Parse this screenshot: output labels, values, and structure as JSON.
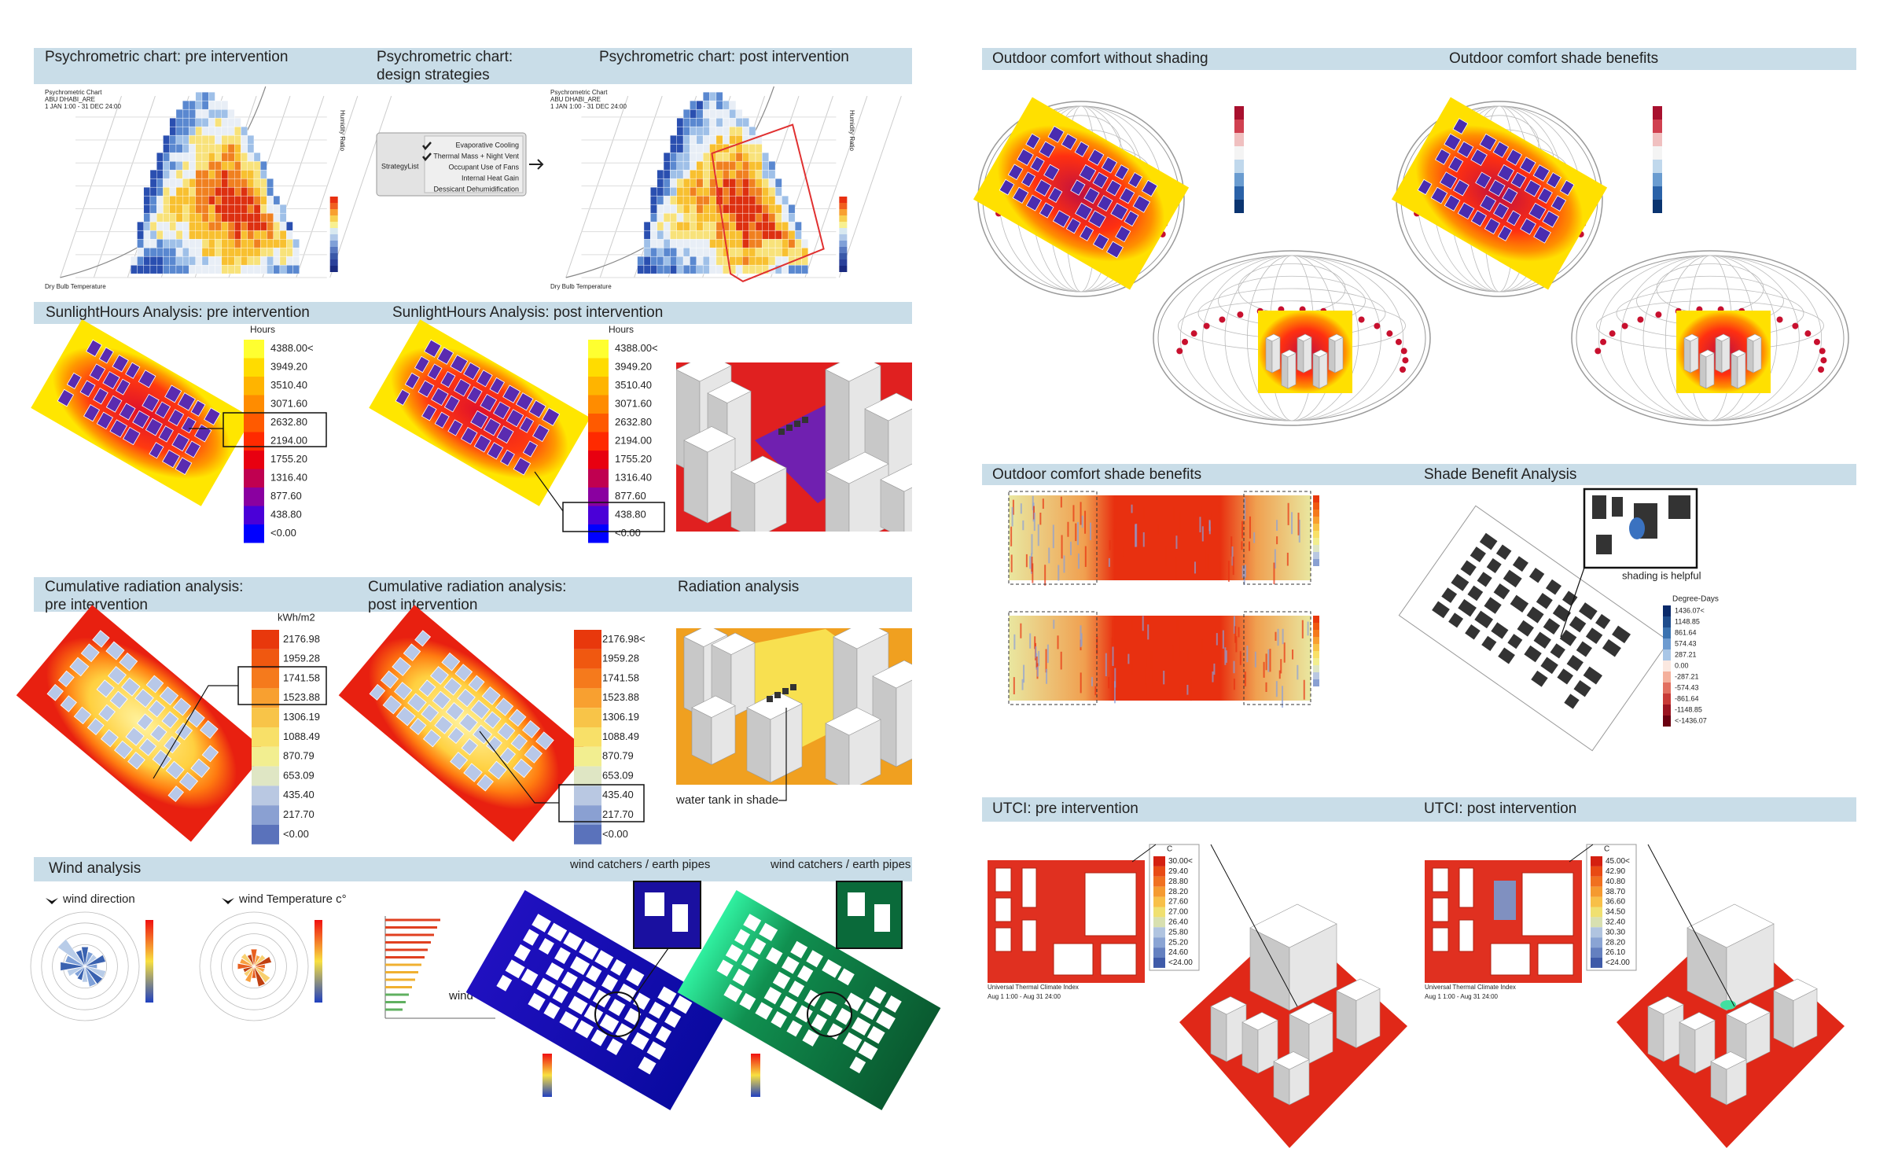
{
  "psychrometric": {
    "pre_title": "Psychrometric chart: pre intervention",
    "design_title": [
      "Psychrometric chart:",
      "design strategies"
    ],
    "post_title": "Psychrometric chart: post intervention",
    "chart_caption": [
      "Psychrometric Chart",
      "ABU DHABI_ARE",
      "1 JAN 1:00 - 31 DEC 24:00"
    ],
    "x_label": "Dry Bulb Temperature",
    "y_label": "Humidity Ratio",
    "strategy_input": "StrategyList",
    "strategies": [
      "Evaporative Cooling",
      "Thermal Mass + Night Vent",
      "Occupant Use of Fans",
      "Internal Heat Gain",
      "Dessicant Dehumidification"
    ]
  },
  "sunlight": {
    "pre_title": "SunlightHours Analysis: pre intervention",
    "post_title": "SunlightHours Analysis: post intervention",
    "legend_title": "Hours",
    "pre_legend": [
      "4388.00<",
      "3949.20",
      "3510.40",
      "3071.60",
      "2632.80",
      "2194.00",
      "1755.20",
      "1316.40",
      "877.60",
      "438.80",
      "<0.00"
    ],
    "post_legend": [
      "4388.00<",
      "3949.20",
      "3510.40",
      "3071.60",
      "2632.80",
      "2194.00",
      "1755.20",
      "1316.40",
      "877.60",
      "438.80",
      "<0.00"
    ]
  },
  "radiation": {
    "pre_title": [
      "Cumulative radiation analysis:",
      "pre intervention"
    ],
    "post_title": [
      "Cumulative radiation analysis:",
      "post intervention"
    ],
    "render_title": "Radiation analysis",
    "legend_title": "kWh/m2",
    "pre_legend": [
      "2176.98",
      "1959.28",
      "1741.58",
      "1523.88",
      "1306.19",
      "1088.49",
      "870.79",
      "653.09",
      "435.40",
      "217.70",
      "<0.00"
    ],
    "post_legend": [
      "2176.98<",
      "1959.28",
      "1741.58",
      "1523.88",
      "1306.19",
      "1088.49",
      "870.79",
      "653.09",
      "435.40",
      "217.70",
      "<0.00"
    ],
    "annotation": "water tank in shade"
  },
  "wind": {
    "title": "Wind analysis",
    "rose_titles": [
      "wind direction",
      "wind Temperature c°"
    ],
    "profile_label": "wind speed",
    "pipes_titles": [
      "wind catchers / earth pipes",
      "wind catchers / earth pipes"
    ]
  },
  "outdoor_comfort": {
    "titles": [
      "Outdoor comfort without shading",
      "Outdoor comfort shade benefits"
    ]
  },
  "shade_benefit": {
    "titles": [
      "Outdoor comfort shade benefits",
      "Shade Benefit Analysis"
    ],
    "annotation": "shading is helpful",
    "legend_title": "Degree-Days",
    "legend": [
      "1436.07<",
      "1148.85",
      "861.64",
      "574.43",
      "287.21",
      "0.00",
      "-287.21",
      "-574.43",
      "-861.64",
      "-1148.85",
      "<-1436.07"
    ]
  },
  "utci": {
    "titles": [
      "UTCI: pre intervention",
      "UTCI: post intervention"
    ],
    "legend_title": "C",
    "pre_legend": [
      "30.00<",
      "29.40",
      "28.80",
      "28.20",
      "27.60",
      "27.00",
      "26.40",
      "25.80",
      "25.20",
      "24.60",
      "<24.00"
    ],
    "post_legend": [
      "45.00<",
      "42.90",
      "40.80",
      "38.70",
      "36.60",
      "34.50",
      "32.40",
      "30.30",
      "28.20",
      "26.10",
      "<24.00"
    ],
    "caption": [
      "Universal Thermal Climate Index",
      "Aug 1 1:00 - Aug 31 24:00"
    ]
  }
}
